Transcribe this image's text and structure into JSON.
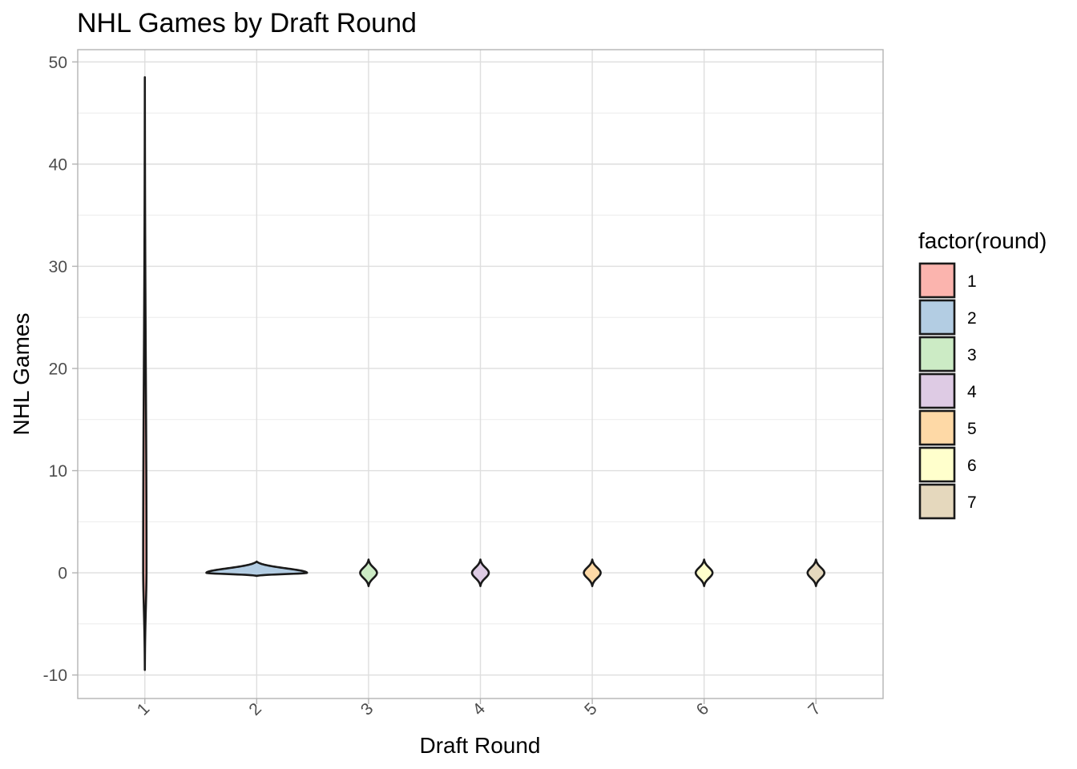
{
  "chart_data": {
    "type": "violin",
    "title": "NHL Games by Draft Round",
    "xlabel": "Draft Round",
    "ylabel": "NHL Games",
    "categories": [
      "1",
      "2",
      "3",
      "4",
      "5",
      "6",
      "7"
    ],
    "ylim": [
      -12.3,
      51.2
    ],
    "yticks": [
      -10,
      0,
      10,
      20,
      30,
      40,
      50
    ],
    "grid": true,
    "legend": {
      "title": "factor(round)",
      "position": "right",
      "entries": [
        "1",
        "2",
        "3",
        "4",
        "5",
        "6",
        "7"
      ]
    },
    "violins": [
      {
        "category": "1",
        "min": -9.5,
        "max": 48.5,
        "peak": 0.5,
        "max_halfwidth_rounds": 0.015,
        "color": "#FBB4AE"
      },
      {
        "category": "2",
        "min": -0.3,
        "max": 1.1,
        "peak": 0.0,
        "max_halfwidth_rounds": 0.45,
        "color": "#B3CDE3"
      },
      {
        "category": "3",
        "min": -1.3,
        "max": 1.3,
        "peak": 0.0,
        "max_halfwidth_rounds": 0.075,
        "color": "#CCEBC5"
      },
      {
        "category": "4",
        "min": -1.3,
        "max": 1.3,
        "peak": 0.0,
        "max_halfwidth_rounds": 0.075,
        "color": "#DECBE4"
      },
      {
        "category": "5",
        "min": -1.3,
        "max": 1.3,
        "peak": 0.0,
        "max_halfwidth_rounds": 0.075,
        "color": "#FED9A6"
      },
      {
        "category": "6",
        "min": -1.3,
        "max": 1.3,
        "peak": 0.0,
        "max_halfwidth_rounds": 0.075,
        "color": "#FFFFCC"
      },
      {
        "category": "7",
        "min": -1.3,
        "max": 1.3,
        "peak": 0.0,
        "max_halfwidth_rounds": 0.075,
        "color": "#E5D8BD"
      }
    ]
  }
}
